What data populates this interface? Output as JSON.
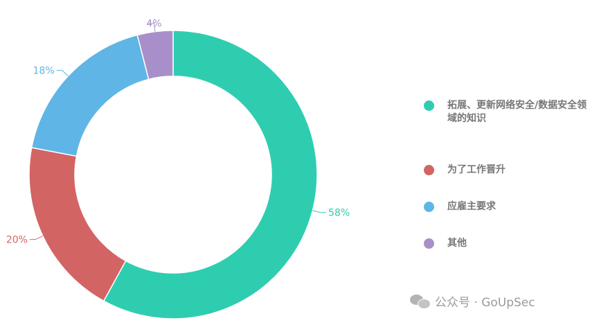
{
  "chart_data": {
    "type": "pie",
    "donut": true,
    "title": "",
    "start_angle_deg": 0,
    "direction": "clockwise",
    "legend_position": "right",
    "slices": [
      {
        "name": "拓展、更新网络安全/数据安全领域的知识",
        "value": 58,
        "label": "58%",
        "color": "#2ecdb0"
      },
      {
        "name": "为了工作晋升",
        "value": 20,
        "label": "20%",
        "color": "#d36464"
      },
      {
        "name": "应雇主要求",
        "value": 18,
        "label": "18%",
        "color": "#5fb5e6"
      },
      {
        "name": "其他",
        "value": 4,
        "label": "4%",
        "color": "#a98fc9"
      }
    ]
  },
  "watermark": {
    "text": "公众号 · GoUpSec",
    "icon": "wechat-icon"
  }
}
